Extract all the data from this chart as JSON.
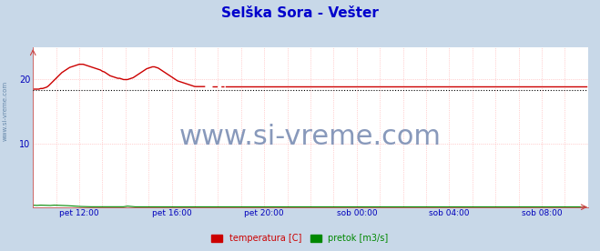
{
  "title": "Selška Sora - Vešter",
  "title_color": "#0000cc",
  "title_fontsize": 11,
  "bg_color": "#c8d8e8",
  "plot_bg_color": "#ffffff",
  "grid_color": "#ffaaaa",
  "xlabel_color": "#0000bb",
  "ylabel_ticks": [
    10,
    20
  ],
  "ylim": [
    0,
    25
  ],
  "xlim": [
    0,
    288
  ],
  "watermark_text": "www.si-vreme.com",
  "watermark_color": "#8899bb",
  "watermark_fontsize": 22,
  "sidebar_text": "www.si-vreme.com",
  "sidebar_color": "#6688aa",
  "x_tick_positions": [
    24,
    72,
    120,
    168,
    216,
    264
  ],
  "x_tick_labels": [
    "pet 12:00",
    "pet 16:00",
    "pet 20:00",
    "sob 00:00",
    "sob 04:00",
    "sob 08:00"
  ],
  "legend_labels": [
    "temperatura [C]",
    "pretok [m3/s]"
  ],
  "legend_colors": [
    "#cc0000",
    "#008800"
  ],
  "temp_color": "#cc0000",
  "flow_color": "#008800",
  "avg_color": "#000000",
  "avg_value": 18.4,
  "temp_data": [
    18.5,
    18.5,
    18.5,
    18.5,
    18.6,
    18.6,
    18.7,
    18.8,
    19.0,
    19.3,
    19.6,
    19.9,
    20.2,
    20.5,
    20.8,
    21.1,
    21.3,
    21.5,
    21.7,
    21.9,
    22.0,
    22.1,
    22.2,
    22.3,
    22.4,
    22.4,
    22.4,
    22.3,
    22.2,
    22.1,
    22.0,
    21.9,
    21.8,
    21.7,
    21.6,
    21.5,
    21.3,
    21.2,
    21.0,
    20.8,
    20.6,
    20.5,
    20.4,
    20.3,
    20.2,
    20.2,
    20.1,
    20.0,
    20.0,
    20.0,
    20.1,
    20.2,
    20.3,
    20.5,
    20.7,
    20.9,
    21.1,
    21.3,
    21.5,
    21.7,
    21.8,
    21.9,
    22.0,
    22.0,
    21.9,
    21.8,
    21.6,
    21.4,
    21.2,
    21.0,
    20.8,
    20.6,
    20.4,
    20.2,
    20.0,
    19.8,
    19.7,
    19.6,
    19.5,
    19.4,
    19.3,
    19.2,
    19.1,
    19.0,
    18.9,
    18.9,
    18.9,
    18.9,
    18.9,
    18.9,
    18.9,
    18.9,
    18.9,
    18.9,
    18.9,
    18.9,
    18.9,
    18.9,
    18.9,
    18.9,
    18.9,
    18.9,
    18.9,
    18.9,
    18.9,
    18.9,
    18.9,
    18.9,
    18.9,
    18.9,
    18.9,
    18.9,
    18.9,
    18.9,
    18.9,
    18.9,
    18.9,
    18.9,
    18.9,
    18.9,
    18.9,
    18.9,
    18.9,
    18.9,
    18.9,
    18.9,
    18.9,
    18.9,
    18.9,
    18.9,
    18.9,
    18.9,
    18.9,
    18.9,
    18.9,
    18.9,
    18.9,
    18.9,
    18.9,
    18.9,
    18.9,
    18.9,
    18.9,
    18.9,
    18.9,
    18.9,
    18.9,
    18.9,
    18.9,
    18.9,
    18.9,
    18.9,
    18.9,
    18.9,
    18.9,
    18.9,
    18.9,
    18.9,
    18.9,
    18.9,
    18.9,
    18.9,
    18.9,
    18.9,
    18.9,
    18.9,
    18.9,
    18.9,
    18.9,
    18.9,
    18.9,
    18.9,
    18.9,
    18.9,
    18.9,
    18.9,
    18.9,
    18.9,
    18.9,
    18.9,
    18.9,
    18.9,
    18.9,
    18.9,
    18.9,
    18.9,
    18.9,
    18.9,
    18.9,
    18.9,
    18.9,
    18.9,
    18.9,
    18.9,
    18.9,
    18.9,
    18.9,
    18.9,
    18.9,
    18.9,
    18.9,
    18.9,
    18.9,
    18.9,
    18.9,
    18.9,
    18.9,
    18.9,
    18.9,
    18.9,
    18.9,
    18.9,
    18.9,
    18.9,
    18.9,
    18.9,
    18.9,
    18.9,
    18.9,
    18.9,
    18.9,
    18.9,
    18.9,
    18.9,
    18.9,
    18.9,
    18.9,
    18.9,
    18.9,
    18.9,
    18.9,
    18.9,
    18.9,
    18.9,
    18.9,
    18.9,
    18.9,
    18.9,
    18.9,
    18.9,
    18.9,
    18.9,
    18.9,
    18.9,
    18.9,
    18.9,
    18.9,
    18.9,
    18.9,
    18.9,
    18.9,
    18.9,
    18.9,
    18.9,
    18.9,
    18.9,
    18.9,
    18.9,
    18.9,
    18.9,
    18.9,
    18.9,
    18.9,
    18.9,
    18.9,
    18.9,
    18.9,
    18.9,
    18.9,
    18.9,
    18.9,
    18.9,
    18.9,
    18.9,
    18.9,
    18.9,
    18.9,
    18.9,
    18.9,
    18.9,
    18.9,
    18.9,
    18.9,
    18.9,
    18.9,
    18.9,
    18.9,
    18.9
  ],
  "flow_data": [
    0.3,
    0.28,
    0.26,
    0.28,
    0.3,
    0.29,
    0.28,
    0.27,
    0.26,
    0.25,
    0.28,
    0.3,
    0.29,
    0.28,
    0.27,
    0.26,
    0.25,
    0.24,
    0.22,
    0.2,
    0.18,
    0.16,
    0.14,
    0.12,
    0.1,
    0.09,
    0.08,
    0.07,
    0.06,
    0.05,
    0.05,
    0.05,
    0.05,
    0.05,
    0.05,
    0.05,
    0.05,
    0.05,
    0.05,
    0.05,
    0.05,
    0.05,
    0.05,
    0.05,
    0.05,
    0.05,
    0.05,
    0.05,
    0.1,
    0.15,
    0.12,
    0.08,
    0.05,
    0.04,
    0.04,
    0.03,
    0.03,
    0.03,
    0.03,
    0.03,
    0.03,
    0.03,
    0.03,
    0.03,
    0.03,
    0.03,
    0.03,
    0.03,
    0.03,
    0.03,
    0.03,
    0.03,
    0.03,
    0.03,
    0.03,
    0.03,
    0.03,
    0.03,
    0.03,
    0.03,
    0.03,
    0.03,
    0.03,
    0.03,
    0.03,
    0.03,
    0.03,
    0.03,
    0.03,
    0.03,
    0.03,
    0.03,
    0.03,
    0.03,
    0.03,
    0.03,
    0.03,
    0.03,
    0.03,
    0.03,
    0.03,
    0.03,
    0.03,
    0.03,
    0.03,
    0.03,
    0.03,
    0.03,
    0.03,
    0.03,
    0.03,
    0.03,
    0.03,
    0.03,
    0.03,
    0.03,
    0.03,
    0.03,
    0.03,
    0.03,
    0.03,
    0.03,
    0.03,
    0.03,
    0.03,
    0.03,
    0.03,
    0.03,
    0.03,
    0.03,
    0.03,
    0.03,
    0.03,
    0.03,
    0.03,
    0.03,
    0.03,
    0.03,
    0.03,
    0.03,
    0.03,
    0.03,
    0.03,
    0.03,
    0.03,
    0.03,
    0.03,
    0.03,
    0.03,
    0.03,
    0.03,
    0.03,
    0.03,
    0.03,
    0.03,
    0.03,
    0.03,
    0.03,
    0.03,
    0.03,
    0.03,
    0.03,
    0.03,
    0.03,
    0.03,
    0.03,
    0.03,
    0.03,
    0.03,
    0.03,
    0.03,
    0.03,
    0.03,
    0.03,
    0.03,
    0.03,
    0.03,
    0.03,
    0.03,
    0.03,
    0.03,
    0.03,
    0.03,
    0.03,
    0.03,
    0.03,
    0.03,
    0.03,
    0.03,
    0.03,
    0.03,
    0.03,
    0.03,
    0.03,
    0.03,
    0.03,
    0.03,
    0.03,
    0.03,
    0.03,
    0.03,
    0.03,
    0.03,
    0.03,
    0.03,
    0.03,
    0.03,
    0.03,
    0.03,
    0.03,
    0.03,
    0.03,
    0.03,
    0.03,
    0.03,
    0.03,
    0.03,
    0.03,
    0.03,
    0.03,
    0.03,
    0.03,
    0.03,
    0.03,
    0.03,
    0.03,
    0.03,
    0.03,
    0.03,
    0.03,
    0.03,
    0.03,
    0.03,
    0.03,
    0.03,
    0.03,
    0.03,
    0.03,
    0.03,
    0.03,
    0.03,
    0.03,
    0.03,
    0.03,
    0.03,
    0.03,
    0.03,
    0.03,
    0.03,
    0.03,
    0.03,
    0.03,
    0.03,
    0.03,
    0.03,
    0.03,
    0.03,
    0.03,
    0.03,
    0.03,
    0.03,
    0.03,
    0.03,
    0.03,
    0.03,
    0.03,
    0.03,
    0.03,
    0.03,
    0.03,
    0.03,
    0.03,
    0.03,
    0.03,
    0.03,
    0.03,
    0.03,
    0.03,
    0.03,
    0.03,
    0.03,
    0.03,
    0.03,
    0.03,
    0.03,
    0.03,
    0.03,
    0.03
  ],
  "solid_end": 90,
  "dashed_start": 93,
  "dashed_end": 100,
  "solid2_start": 100
}
